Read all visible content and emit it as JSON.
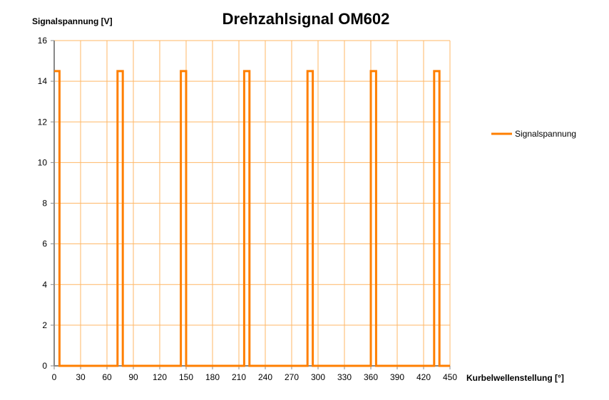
{
  "chart_data": {
    "type": "line",
    "title": "Drehzahlsignal OM602",
    "xlabel": "Kurbelwellenstellung [°]",
    "ylabel": "Signalspannung [V]",
    "xlim": [
      0,
      450
    ],
    "ylim": [
      0,
      16
    ],
    "xticks": [
      0,
      30,
      60,
      90,
      120,
      150,
      180,
      210,
      240,
      270,
      300,
      330,
      360,
      390,
      420,
      450
    ],
    "yticks": [
      0,
      2,
      4,
      6,
      8,
      10,
      12,
      14,
      16
    ],
    "grid": true,
    "legend": "right",
    "series": [
      {
        "name": "Signalspannung",
        "color": "#ff7f00",
        "x": [
          0,
          6,
          6,
          72,
          72,
          78,
          78,
          144,
          144,
          150,
          150,
          216,
          216,
          222,
          222,
          288,
          288,
          294,
          294,
          360,
          360,
          366,
          366,
          432,
          432,
          438,
          438,
          450
        ],
        "y": [
          14.5,
          14.5,
          0,
          0,
          14.5,
          14.5,
          0,
          0,
          14.5,
          14.5,
          0,
          0,
          14.5,
          14.5,
          0,
          0,
          14.5,
          14.5,
          0,
          0,
          14.5,
          14.5,
          0,
          0,
          14.5,
          14.5,
          0,
          0
        ]
      }
    ],
    "grid_color": "#ffb766"
  }
}
